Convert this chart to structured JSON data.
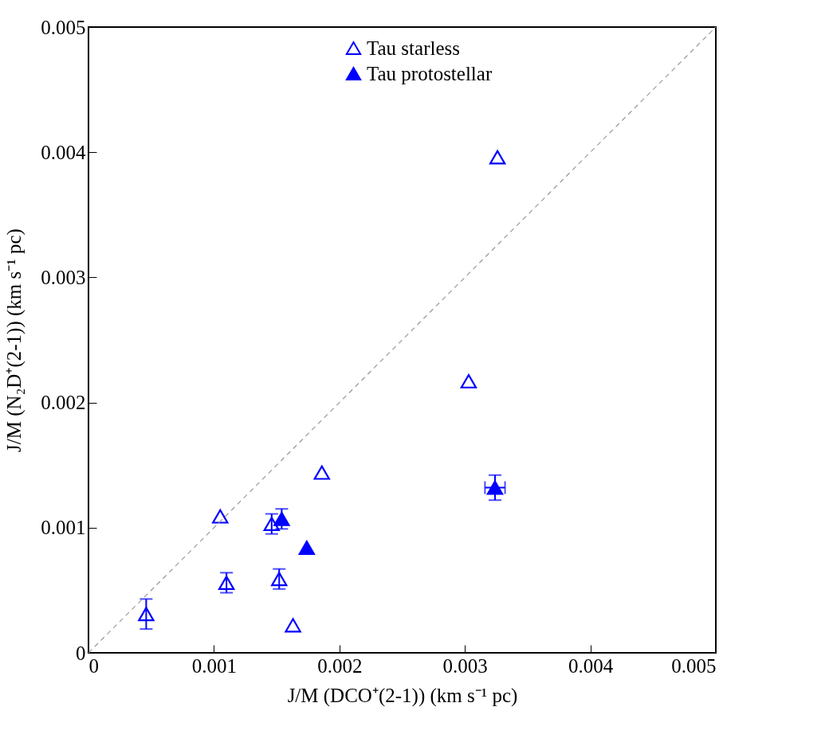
{
  "chart_data": {
    "type": "scatter",
    "xlabel": "J/M (DCO⁺(2-1)) (km s⁻¹ pc)",
    "ylabel": "J/M (N₂D⁺(2-1)) (km s⁻¹ pc)",
    "xlim": [
      0,
      0.005
    ],
    "ylim": [
      0,
      0.005
    ],
    "xticks": [
      0,
      0.001,
      0.002,
      0.003,
      0.004,
      0.005
    ],
    "yticks": [
      0,
      0.001,
      0.002,
      0.003,
      0.004,
      0.005
    ],
    "grid": false,
    "legend": "top",
    "series": [
      {
        "name": "Tau starless",
        "color": "#0000ff",
        "marker": "triangle",
        "x": [
          0.00046,
          0.00105,
          0.0011,
          0.00146,
          0.00152,
          0.00163,
          0.00186,
          0.00303,
          0.00326
        ],
        "values": [
          0.00031,
          0.00109,
          0.00056,
          0.00103,
          0.00059,
          0.00022,
          0.00144,
          0.00217,
          0.00396
        ],
        "errors": [
          0.00012,
          null,
          8e-05,
          8e-05,
          8e-05,
          null,
          null,
          null,
          null
        ]
      },
      {
        "name": "Tau protostellar",
        "color": "#0000ff",
        "marker": "triangle",
        "x": [
          0.00154,
          0.00174,
          0.00324
        ],
        "values": [
          0.00107,
          0.00084,
          0.00132
        ],
        "errors": [
          8e-05,
          null,
          0.0001
        ],
        "xerrors": [
          null,
          null,
          8e-05
        ]
      },
      {
        "type": "line",
        "color": "#999999",
        "line_style": "dashed",
        "marker": "none",
        "x": [
          0,
          0.005
        ],
        "values": [
          0,
          0.005
        ]
      }
    ]
  }
}
